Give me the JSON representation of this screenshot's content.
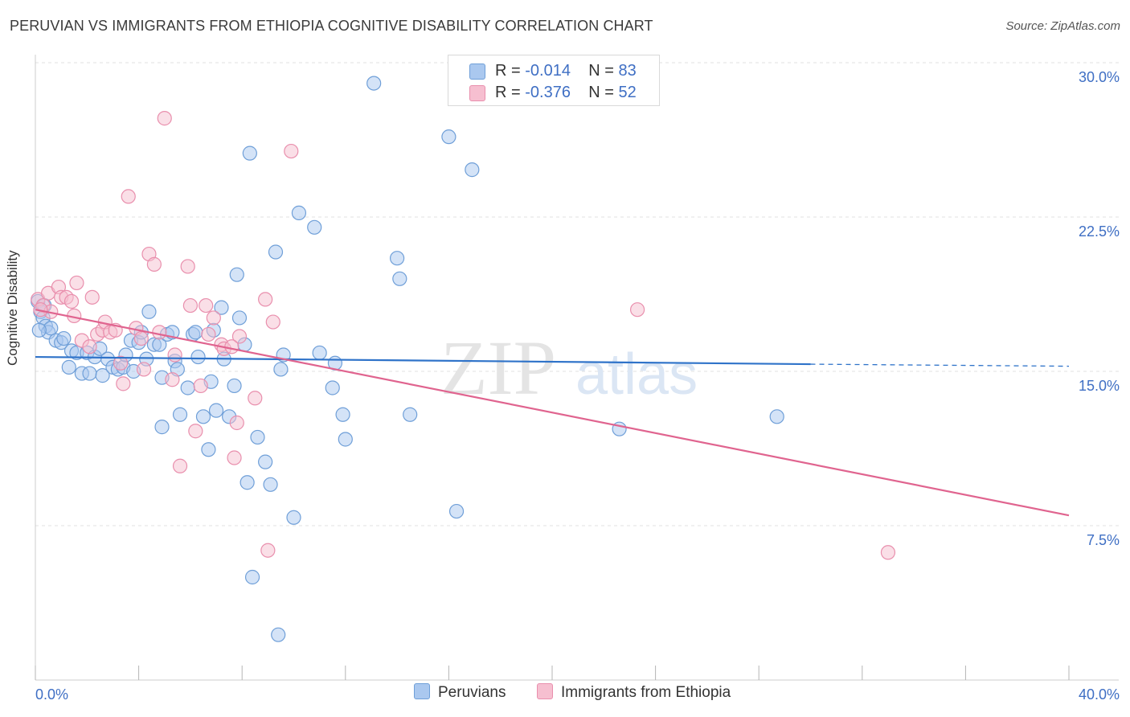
{
  "title": "PERUVIAN VS IMMIGRANTS FROM ETHIOPIA COGNITIVE DISABILITY CORRELATION CHART",
  "source": "Source: ZipAtlas.com",
  "watermark": {
    "zip": "ZIP",
    "atlas": "atlas"
  },
  "colors": {
    "blue_fill": "#aac8ef",
    "blue_stroke": "#6f9fd8",
    "blue_line": "#2f73c9",
    "pink_fill": "#f6bfd0",
    "pink_stroke": "#e98fad",
    "pink_line": "#e0648f",
    "tick_label": "#3f6fc4",
    "grid": "#e0e0e0"
  },
  "legend": [
    {
      "r_label": "R =",
      "r_value": "-0.014",
      "n_label": "N =",
      "n_value": "83"
    },
    {
      "r_label": "R =",
      "r_value": "-0.376",
      "n_label": "N =",
      "n_value": "52"
    }
  ],
  "chart_data": {
    "type": "scatter",
    "title": "PERUVIAN VS IMMIGRANTS FROM ETHIOPIA COGNITIVE DISABILITY CORRELATION CHART",
    "xlabel": "",
    "ylabel": "Cognitive Disability",
    "xlim": [
      0,
      40
    ],
    "ylim": [
      0,
      30
    ],
    "x_tick_labels": [
      {
        "value": 0,
        "label": "0.0%"
      },
      {
        "value": 40,
        "label": "40.0%"
      }
    ],
    "y_tick_labels": [
      {
        "value": 7.5,
        "label": "7.5%"
      },
      {
        "value": 15,
        "label": "15.0%"
      },
      {
        "value": 22.5,
        "label": "22.5%"
      },
      {
        "value": 30,
        "label": "30.0%"
      }
    ],
    "x_minor_ticks": [
      0,
      4,
      8,
      12,
      16,
      20,
      24,
      28,
      32,
      36,
      40
    ],
    "grid": true,
    "legend_position": "top-center",
    "series": [
      {
        "name": "Peruvians",
        "color": "blue",
        "R": -0.014,
        "N": 83,
        "trend": {
          "x0": 0,
          "y0": 15.7,
          "x1": 30,
          "y1": 15.35,
          "dash_to": 40,
          "dash_y": 15.25
        },
        "points": [
          [
            0.1,
            18.4
          ],
          [
            0.2,
            17.9
          ],
          [
            0.3,
            17.6
          ],
          [
            0.4,
            17.2
          ],
          [
            0.5,
            16.9
          ],
          [
            0.6,
            17.1
          ],
          [
            0.8,
            16.5
          ],
          [
            1.0,
            16.4
          ],
          [
            1.1,
            16.6
          ],
          [
            1.3,
            15.2
          ],
          [
            1.4,
            16.0
          ],
          [
            1.6,
            15.9
          ],
          [
            1.8,
            14.9
          ],
          [
            2.0,
            15.9
          ],
          [
            2.1,
            14.9
          ],
          [
            2.3,
            15.7
          ],
          [
            2.5,
            16.1
          ],
          [
            2.6,
            14.8
          ],
          [
            2.8,
            15.6
          ],
          [
            3.0,
            15.2
          ],
          [
            3.2,
            15.1
          ],
          [
            3.4,
            15.2
          ],
          [
            3.5,
            15.8
          ],
          [
            3.7,
            16.5
          ],
          [
            3.8,
            15.0
          ],
          [
            4.0,
            16.4
          ],
          [
            4.1,
            16.9
          ],
          [
            4.3,
            15.6
          ],
          [
            4.4,
            17.9
          ],
          [
            4.6,
            16.3
          ],
          [
            4.8,
            16.3
          ],
          [
            4.9,
            14.7
          ],
          [
            4.9,
            12.3
          ],
          [
            5.1,
            16.8
          ],
          [
            5.3,
            16.9
          ],
          [
            5.4,
            15.5
          ],
          [
            5.5,
            15.1
          ],
          [
            5.6,
            12.9
          ],
          [
            5.9,
            14.2
          ],
          [
            6.1,
            16.8
          ],
          [
            6.2,
            16.9
          ],
          [
            6.3,
            15.7
          ],
          [
            6.5,
            12.8
          ],
          [
            6.7,
            11.2
          ],
          [
            6.8,
            14.5
          ],
          [
            6.9,
            17.0
          ],
          [
            7.0,
            13.1
          ],
          [
            7.2,
            18.1
          ],
          [
            7.3,
            15.6
          ],
          [
            7.5,
            12.8
          ],
          [
            7.7,
            14.3
          ],
          [
            7.8,
            19.7
          ],
          [
            7.9,
            17.6
          ],
          [
            8.1,
            16.3
          ],
          [
            8.2,
            9.6
          ],
          [
            8.3,
            25.6
          ],
          [
            8.4,
            5.0
          ],
          [
            8.6,
            11.8
          ],
          [
            8.9,
            10.6
          ],
          [
            9.1,
            9.5
          ],
          [
            9.3,
            20.8
          ],
          [
            9.4,
            2.2
          ],
          [
            9.6,
            15.8
          ],
          [
            9.5,
            15.1
          ],
          [
            10.0,
            7.9
          ],
          [
            10.2,
            22.7
          ],
          [
            10.8,
            22.0
          ],
          [
            11.0,
            15.9
          ],
          [
            11.5,
            14.2
          ],
          [
            11.6,
            15.4
          ],
          [
            11.9,
            12.9
          ],
          [
            12.0,
            11.7
          ],
          [
            13.1,
            29.0
          ],
          [
            14.0,
            20.5
          ],
          [
            14.1,
            19.5
          ],
          [
            14.5,
            12.9
          ],
          [
            16.0,
            26.4
          ],
          [
            16.3,
            8.2
          ],
          [
            16.9,
            24.8
          ],
          [
            22.6,
            12.2
          ],
          [
            28.7,
            12.8
          ],
          [
            0.35,
            18.2
          ],
          [
            0.15,
            17.0
          ]
        ]
      },
      {
        "name": "Immigrants from Ethiopia",
        "color": "pink",
        "R": -0.376,
        "N": 52,
        "trend": {
          "x0": 0,
          "y0": 18.0,
          "x1": 40,
          "y1": 8.0
        },
        "points": [
          [
            0.1,
            18.5
          ],
          [
            0.3,
            18.2
          ],
          [
            0.5,
            18.8
          ],
          [
            0.6,
            17.9
          ],
          [
            0.9,
            19.1
          ],
          [
            1.0,
            18.6
          ],
          [
            1.2,
            18.6
          ],
          [
            1.5,
            17.7
          ],
          [
            1.6,
            19.3
          ],
          [
            1.8,
            16.5
          ],
          [
            2.1,
            16.2
          ],
          [
            2.2,
            18.6
          ],
          [
            2.4,
            16.8
          ],
          [
            2.6,
            17.0
          ],
          [
            2.7,
            17.4
          ],
          [
            2.9,
            16.9
          ],
          [
            3.1,
            17.0
          ],
          [
            3.3,
            15.4
          ],
          [
            3.4,
            14.4
          ],
          [
            3.6,
            23.5
          ],
          [
            3.9,
            17.1
          ],
          [
            4.1,
            16.6
          ],
          [
            4.2,
            15.1
          ],
          [
            4.4,
            20.7
          ],
          [
            4.6,
            20.2
          ],
          [
            4.8,
            16.9
          ],
          [
            5.0,
            27.3
          ],
          [
            5.3,
            14.6
          ],
          [
            5.4,
            15.8
          ],
          [
            5.6,
            10.4
          ],
          [
            5.9,
            20.1
          ],
          [
            6.0,
            18.2
          ],
          [
            6.2,
            12.1
          ],
          [
            6.4,
            14.3
          ],
          [
            6.6,
            18.2
          ],
          [
            6.7,
            16.8
          ],
          [
            6.9,
            17.6
          ],
          [
            7.2,
            16.3
          ],
          [
            7.3,
            16.1
          ],
          [
            7.7,
            10.8
          ],
          [
            7.8,
            12.5
          ],
          [
            7.9,
            16.7
          ],
          [
            8.5,
            13.7
          ],
          [
            8.9,
            18.5
          ],
          [
            9.0,
            6.3
          ],
          [
            9.2,
            17.4
          ],
          [
            9.9,
            25.7
          ],
          [
            23.3,
            18.0
          ],
          [
            33.0,
            6.2
          ],
          [
            0.2,
            18.0
          ],
          [
            1.4,
            18.4
          ],
          [
            7.6,
            16.2
          ]
        ]
      }
    ]
  },
  "bottom_legend": {
    "blue_label": "Peruvians",
    "pink_label": "Immigrants from Ethiopia"
  }
}
